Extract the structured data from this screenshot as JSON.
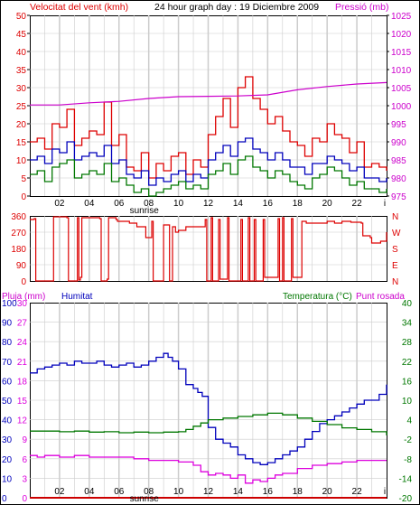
{
  "title": "24 hour graph day : 19 Diciembre 2009",
  "colors": {
    "wind": "#dd0000",
    "pressure": "#cc00cc",
    "temperature": "#007700",
    "humidity": "#0000bb",
    "dewpoint": "#dd00dd",
    "rain": "#cc0000",
    "grid": "#cccccc",
    "frame": "#000000"
  },
  "chart_data": [
    {
      "type": "line",
      "name": "wind-pressure",
      "title": "24 hour graph day : 19 Diciembre 2009",
      "ylabel_left": "Velocitat del vent (kmh)",
      "ylabel_right": "Pressió (mb)",
      "x_ticks": [
        "02",
        "04",
        "06",
        "08",
        "10",
        "12",
        "14",
        "16",
        "18",
        "20",
        "22"
      ],
      "annotation": "sunrise",
      "sunrise_x": 7.7,
      "y_ticks_left": [
        "0",
        "5",
        "10",
        "15",
        "20",
        "25",
        "30",
        "35",
        "40",
        "45",
        "50"
      ],
      "y_ticks_right": [
        "975",
        "980",
        "985",
        "990",
        "995",
        "1000",
        "1005",
        "1010",
        "1015",
        "1020",
        "1025"
      ],
      "ylim_left": [
        0,
        50
      ],
      "ylim_right": [
        975,
        1025
      ],
      "xlim": [
        0,
        24
      ],
      "series": [
        {
          "key": "gust",
          "color": "#dd0000",
          "axis": "left",
          "x": [
            0,
            0.5,
            1,
            1.5,
            2,
            2.5,
            3,
            3.5,
            4,
            4.5,
            5,
            5.5,
            6,
            6.5,
            7,
            7.5,
            8,
            8.5,
            9,
            9.5,
            10,
            10.5,
            11,
            11.5,
            12,
            12.5,
            13,
            13.5,
            14,
            14.5,
            15,
            15.5,
            16,
            16.5,
            17,
            17.5,
            18,
            18.5,
            19,
            19.5,
            20,
            20.5,
            21,
            21.5,
            22,
            22.5,
            23,
            23.5,
            24
          ],
          "values": [
            15,
            16,
            13,
            20,
            19,
            24,
            14,
            16,
            18,
            17,
            26,
            14,
            17,
            8,
            7,
            12,
            5,
            9,
            7,
            11,
            12,
            6,
            10,
            8,
            17,
            22,
            27,
            19,
            30,
            33,
            27,
            24,
            20,
            22,
            18,
            15,
            14,
            11,
            16,
            15,
            20,
            17,
            16,
            12,
            15,
            8,
            9,
            8,
            7
          ]
        },
        {
          "key": "average",
          "color": "#0000bb",
          "axis": "left",
          "x": [
            0,
            0.5,
            1,
            1.5,
            2,
            2.5,
            3,
            3.5,
            4,
            4.5,
            5,
            5.5,
            6,
            6.5,
            7,
            7.5,
            8,
            8.5,
            9,
            9.5,
            10,
            10.5,
            11,
            11.5,
            12,
            12.5,
            13,
            13.5,
            14,
            14.5,
            15,
            15.5,
            16,
            16.5,
            17,
            17.5,
            18,
            18.5,
            19,
            19.5,
            20,
            20.5,
            21,
            21.5,
            22,
            22.5,
            23,
            23.5,
            24
          ],
          "values": [
            10,
            11,
            9,
            13,
            12,
            15,
            10,
            11,
            12,
            11,
            14,
            9,
            10,
            6,
            5,
            7,
            3,
            5,
            4,
            6,
            7,
            4,
            6,
            5,
            10,
            12,
            14,
            11,
            15,
            16,
            13,
            12,
            10,
            12,
            10,
            8,
            8,
            6,
            9,
            9,
            11,
            10,
            9,
            7,
            8,
            5,
            5,
            4,
            5
          ]
        },
        {
          "key": "minimum",
          "color": "#007700",
          "axis": "left",
          "x": [
            0,
            0.5,
            1,
            1.5,
            2,
            2.5,
            3,
            3.5,
            4,
            4.5,
            5,
            5.5,
            6,
            6.5,
            7,
            7.5,
            8,
            8.5,
            9,
            9.5,
            10,
            10.5,
            11,
            11.5,
            12,
            12.5,
            13,
            13.5,
            14,
            14.5,
            15,
            15.5,
            16,
            16.5,
            17,
            17.5,
            18,
            18.5,
            19,
            19.5,
            20,
            20.5,
            21,
            21.5,
            22,
            22.5,
            23,
            23.5,
            24
          ],
          "values": [
            6,
            7,
            4,
            8,
            9,
            10,
            5,
            6,
            7,
            6,
            9,
            4,
            5,
            3,
            1,
            2,
            0,
            1,
            2,
            3,
            4,
            2,
            3,
            2,
            6,
            7,
            9,
            6,
            10,
            11,
            8,
            7,
            5,
            7,
            6,
            4,
            3,
            2,
            5,
            6,
            8,
            7,
            5,
            3,
            4,
            2,
            2,
            1,
            2
          ]
        },
        {
          "key": "pressure",
          "color": "#cc00cc",
          "axis": "right",
          "x": [
            0,
            2,
            4,
            6,
            8,
            10,
            12,
            14,
            16,
            18,
            20,
            22,
            24
          ],
          "values": [
            1000.2,
            1000.2,
            1000.8,
            1001.2,
            1002.0,
            1002.5,
            1002.6,
            1002.7,
            1003.0,
            1004.4,
            1005.3,
            1006.0,
            1006.4
          ]
        }
      ]
    },
    {
      "type": "line",
      "name": "wind-direction",
      "y_ticks_left": [
        "0",
        "90",
        "180",
        "270",
        "360"
      ],
      "y_ticks_right": [
        "N",
        "E",
        "S",
        "W",
        "N"
      ],
      "ylim": [
        0,
        360
      ],
      "xlim": [
        0,
        24
      ],
      "series": [
        {
          "key": "direction",
          "color": "#dd0000",
          "x": [
            0,
            0.3,
            0.4,
            1.6,
            2.5,
            2.6,
            3.2,
            3.3,
            3.4,
            3.5,
            4.7,
            4.8,
            5.2,
            5.3,
            5.8,
            5.9,
            6.7,
            7.2,
            7.8,
            8.2,
            8.3,
            9.0,
            9.4,
            9.6,
            9.8,
            10.0,
            10.5,
            11.0,
            11.7,
            11.8,
            11.9,
            12.2,
            12.3,
            12.7,
            12.8,
            13.3,
            13.4,
            14.2,
            14.3,
            14.7,
            14.8,
            15.1,
            15.2,
            15.7,
            15.8,
            16.7,
            16.8,
            17.0,
            17.1,
            17.6,
            17.7,
            18.3,
            18.6,
            19.4,
            20.0,
            20.5,
            21.0,
            21.6,
            22.3,
            22.4,
            22.9,
            23.0,
            23.6,
            24
          ],
          "values": [
            340,
            345,
            0,
            355,
            350,
            0,
            350,
            5,
            20,
            350,
            345,
            0,
            10,
            350,
            340,
            330,
            320,
            300,
            240,
            330,
            0,
            310,
            0,
            300,
            270,
            280,
            300,
            300,
            300,
            340,
            0,
            350,
            0,
            340,
            10,
            350,
            0,
            340,
            0,
            350,
            0,
            340,
            0,
            340,
            20,
            345,
            0,
            350,
            0,
            345,
            20,
            330,
            320,
            320,
            330,
            320,
            330,
            325,
            320,
            250,
            240,
            210,
            220,
            270
          ]
        }
      ]
    },
    {
      "type": "line",
      "name": "rain-humidity-temperature",
      "ylabel_left_1": "Pluja (mm)",
      "ylabel_left_2": "Humitat",
      "ylabel_right_1": "Temperatura (°C)",
      "ylabel_right_2": "Punt rosada",
      "x_ticks": [
        "02",
        "04",
        "06",
        "08",
        "10",
        "12",
        "14",
        "16",
        "18",
        "20",
        "22"
      ],
      "annotation": "sunrise",
      "sunrise_x": 7.7,
      "y_ticks_rain": [
        "0",
        "3",
        "6",
        "9",
        "12",
        "15",
        "18",
        "21",
        "24",
        "27",
        "30"
      ],
      "y_ticks_humidity": [
        "0",
        "10",
        "20",
        "30",
        "40",
        "50",
        "60",
        "70",
        "80",
        "90",
        "100"
      ],
      "y_ticks_temp": [
        "-20",
        "-14",
        "-8",
        "-2",
        "4",
        "10",
        "16",
        "22",
        "28",
        "34",
        "40"
      ],
      "ylim_rain": [
        0,
        30
      ],
      "ylim_humidity": [
        0,
        100
      ],
      "ylim_temp": [
        -20,
        40
      ],
      "xlim": [
        0,
        24
      ],
      "series": [
        {
          "key": "humidity",
          "color": "#0000bb",
          "axis": "humidity",
          "x": [
            0,
            0.5,
            1,
            1.5,
            2,
            2.5,
            3,
            3.5,
            4,
            4.5,
            5,
            5.5,
            6,
            6.5,
            7,
            7.5,
            8,
            8.5,
            9,
            9.3,
            9.6,
            10,
            10.5,
            11,
            11.3,
            11.6,
            12,
            12.5,
            13,
            13.5,
            14,
            14.5,
            15,
            15.5,
            16,
            16.5,
            17,
            17.5,
            18,
            18.5,
            19,
            19.5,
            20,
            20.5,
            21,
            21.5,
            22,
            22.5,
            23,
            23.5,
            24
          ],
          "values": [
            64,
            66,
            67,
            68,
            69,
            68,
            70,
            69,
            69,
            70,
            68,
            67,
            68,
            69,
            67,
            68,
            70,
            72,
            74,
            72,
            70,
            66,
            58,
            56,
            54,
            52,
            36,
            30,
            28,
            26,
            22,
            20,
            18,
            17,
            18,
            20,
            22,
            24,
            26,
            30,
            34,
            38,
            40,
            42,
            44,
            46,
            48,
            50,
            50,
            53,
            58
          ]
        },
        {
          "key": "temperature",
          "color": "#007700",
          "axis": "temp",
          "x": [
            0,
            1,
            2,
            3,
            4,
            5,
            6,
            7,
            8,
            9,
            10,
            10.5,
            11,
            11.5,
            12,
            13,
            14,
            15,
            16,
            17,
            18,
            19,
            20,
            21,
            22,
            23,
            24
          ],
          "values": [
            0.5,
            0.5,
            0.3,
            0.5,
            0.2,
            0.3,
            0,
            0.2,
            0,
            0.2,
            0.3,
            1,
            2,
            3,
            4,
            4.5,
            5,
            5.5,
            6,
            5.5,
            4.5,
            3.5,
            2.5,
            1.5,
            1,
            0.3,
            -0.8
          ]
        },
        {
          "key": "dewpoint",
          "color": "#dd00dd",
          "axis": "temp",
          "x": [
            0,
            0.5,
            1,
            2,
            3,
            4,
            5,
            6,
            7,
            8,
            9,
            10,
            10.5,
            11,
            11.5,
            12,
            12.5,
            13,
            13.5,
            14,
            14.5,
            15,
            15.5,
            16,
            16.5,
            17,
            18,
            19,
            20,
            21,
            22,
            23,
            24
          ],
          "values": [
            -7,
            -7.5,
            -7,
            -7.5,
            -7,
            -7.5,
            -7.5,
            -7.5,
            -8,
            -8.5,
            -8.5,
            -9,
            -9,
            -10,
            -12,
            -13,
            -12.5,
            -13,
            -14,
            -13,
            -15.5,
            -14.5,
            -15,
            -14,
            -13,
            -12.5,
            -11,
            -10,
            -9.5,
            -9,
            -8.5,
            -8.5,
            -8.5
          ]
        },
        {
          "key": "rain",
          "color": "#cc0000",
          "axis": "rain",
          "x": [
            0,
            24
          ],
          "values": [
            0,
            0
          ]
        }
      ]
    }
  ]
}
